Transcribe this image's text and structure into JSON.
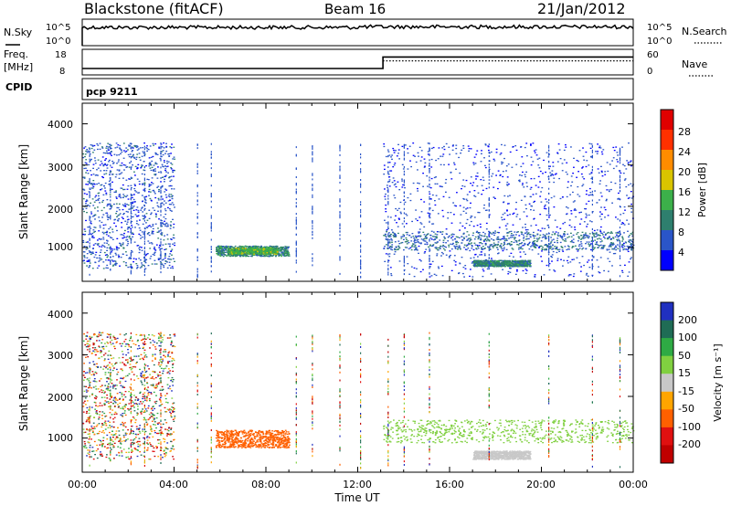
{
  "header": {
    "station": "Blackstone (fitACF)",
    "beam": "Beam 16",
    "date": "21/Jan/2012"
  },
  "noise_panel": {
    "left_label": "N.Sky",
    "right_label": "N.Search",
    "left_ticks": [
      "10^5",
      "10^0"
    ],
    "right_ticks": [
      "10^5",
      "10^0"
    ]
  },
  "freq_panel": {
    "left_label_1": "Freq.",
    "left_label_2": "[MHz]",
    "right_label": "Nave",
    "left_ticks": [
      "18",
      "8"
    ],
    "right_ticks": [
      "60",
      "0"
    ]
  },
  "cpid_panel": {
    "label": "CPID",
    "program": "pcp 9211"
  },
  "range_axis": {
    "label": "Slant Range [km]",
    "ticks": [
      "4000",
      "3000",
      "2000",
      "1000"
    ]
  },
  "time_axis": {
    "label": "Time UT",
    "ticks": [
      "00:00",
      "04:00",
      "08:00",
      "12:00",
      "16:00",
      "20:00",
      "00:00"
    ]
  },
  "power_scale": {
    "label": "Power [dB]",
    "ticks": [
      "28",
      "24",
      "20",
      "16",
      "12",
      "8",
      "4"
    ],
    "colors": [
      "#0000ff",
      "#2a55c8",
      "#2e7f6e",
      "#3cb04a",
      "#d9c400",
      "#ff8c00",
      "#ff3000",
      "#e00000"
    ]
  },
  "velocity_scale": {
    "label": "Velocity [m s⁻¹]",
    "ticks": [
      "200",
      "100",
      "50",
      "15",
      "-15",
      "-50",
      "-100",
      "-200"
    ],
    "colors": [
      "#2030c0",
      "#1f6c55",
      "#2eaa44",
      "#80d040",
      "#c8c8c8",
      "#ffa500",
      "#ff6000",
      "#e01010",
      "#c00000"
    ]
  },
  "chart_data": [
    {
      "type": "line",
      "title": "N.Sky / N.Search",
      "x_range_hours": [
        0,
        24
      ],
      "series": [
        {
          "name": "N.Sky",
          "style": "solid",
          "level": "near 10^5, slowly varying"
        }
      ]
    },
    {
      "type": "line",
      "title": "Freq. / Nave",
      "x_range_hours": [
        0,
        24
      ],
      "series": [
        {
          "name": "Freq.",
          "x": [
            0,
            13.1,
            13.1,
            24
          ],
          "y": [
            10.5,
            10.5,
            15,
            15
          ]
        },
        {
          "name": "Nave",
          "style": "dotted",
          "x": [
            13.1,
            24
          ],
          "y": [
            33,
            33
          ]
        }
      ]
    },
    {
      "type": "heatmap",
      "title": "Power [dB]",
      "xlabel": "Time UT",
      "ylabel": "Slant Range [km]",
      "xlim_hours": [
        0,
        24
      ],
      "ylim_km": [
        180,
        4500
      ],
      "features": [
        {
          "desc": "Broad scatter band",
          "t_start": 0.0,
          "t_end": 4.0,
          "r_min": 500,
          "r_max": 3550,
          "power_db": 6
        },
        {
          "desc": "Dense near-range band",
          "t_start": 5.8,
          "t_end": 9.0,
          "r_min": 800,
          "r_max": 1050,
          "power_db": 10
        },
        {
          "desc": "Enhanced patch",
          "t_start": 6.3,
          "t_end": 8.5,
          "r_min": 850,
          "r_max": 1000,
          "power_db": 14
        },
        {
          "desc": "Dense scatter",
          "t_start": 13.1,
          "t_end": 24.0,
          "r_min": 300,
          "r_max": 3550,
          "power_db": 5
        },
        {
          "desc": "Near-range echo band",
          "t_start": 13.1,
          "t_end": 24.0,
          "r_min": 950,
          "r_max": 1400,
          "power_db": 8
        },
        {
          "desc": "Low echo band",
          "t_start": 17.0,
          "t_end": 19.5,
          "r_min": 550,
          "r_max": 700,
          "power_db": 10
        }
      ]
    },
    {
      "type": "heatmap",
      "title": "Velocity [m s⁻¹]",
      "xlabel": "Time UT",
      "ylabel": "Slant Range [km]",
      "xlim_hours": [
        0,
        24
      ],
      "ylim_km": [
        180,
        4500
      ],
      "features": [
        {
          "desc": "Mixed-velocity scatter",
          "t_start": 0.0,
          "t_end": 4.0,
          "r_min": 500,
          "r_max": 3550,
          "velocity": "mixed"
        },
        {
          "desc": "Negative velocity band",
          "t_start": 5.8,
          "t_end": 9.0,
          "r_min": 780,
          "r_max": 1200,
          "velocity": -50
        },
        {
          "desc": "Near-zero velocity band",
          "t_start": 13.1,
          "t_end": 24.0,
          "r_min": 900,
          "r_max": 1450,
          "velocity": 15
        },
        {
          "desc": "Near-zero low band",
          "t_start": 17.0,
          "t_end": 19.5,
          "r_min": 500,
          "r_max": 700,
          "velocity": 0
        }
      ]
    }
  ]
}
